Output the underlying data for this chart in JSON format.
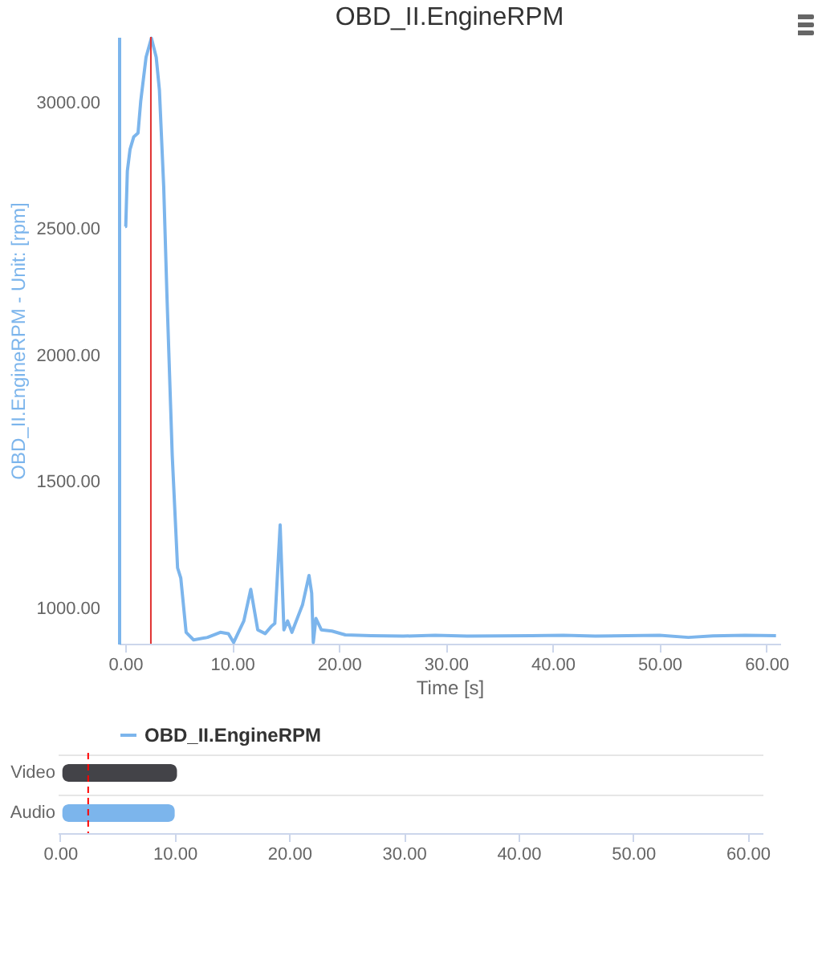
{
  "chart_data": [
    {
      "type": "line",
      "title": "OBD_II.EngineRPM",
      "xlabel": "Time [s]",
      "ylabel": "OBD_II.EngineRPM - Unit: [rpm]",
      "xlim": [
        -0.6,
        61.3
      ],
      "ylim": [
        860,
        3260
      ],
      "xticks": [
        {
          "value": 0,
          "label": "0.00"
        },
        {
          "value": 10,
          "label": "10.00"
        },
        {
          "value": 20,
          "label": "20.00"
        },
        {
          "value": 30,
          "label": "30.00"
        },
        {
          "value": 40,
          "label": "40.00"
        },
        {
          "value": 50,
          "label": "50.00"
        },
        {
          "value": 60,
          "label": "60.00"
        }
      ],
      "yticks": [
        {
          "value": 1000,
          "label": "1000.00"
        },
        {
          "value": 1500,
          "label": "1500.00"
        },
        {
          "value": 2000,
          "label": "2000.00"
        },
        {
          "value": 2500,
          "label": "2500.00"
        },
        {
          "value": 3000,
          "label": "3000.00"
        }
      ],
      "grid": false,
      "legend": "bottom",
      "marker": "none",
      "line_style": "solid",
      "ref_lines": [
        {
          "axis": "x",
          "value": 2.4,
          "color": "#e0302f"
        }
      ],
      "series": [
        {
          "name": "OBD_II.EngineRPM",
          "color": "#7cb5ec",
          "x": [
            0,
            0.05,
            0.2,
            0.45,
            0.8,
            1.2,
            1.45,
            1.95,
            2.45,
            2.9,
            3.2,
            3.6,
            3.9,
            4.4,
            4.9,
            5.2,
            5.7,
            6.4,
            7.7,
            8.9,
            9.65,
            10.15,
            11.1,
            11.75,
            12.4,
            13.1,
            13.7,
            14.0,
            14.5,
            14.85,
            15.2,
            15.6,
            16.6,
            17.2,
            17.45,
            17.6,
            17.85,
            18.35,
            19.35,
            20.6,
            23,
            26,
            29,
            32,
            35,
            38,
            41,
            44,
            47,
            50,
            52.7,
            55,
            58,
            60.9
          ],
          "values": [
            2510,
            2510,
            2730,
            2815,
            2865,
            2880,
            3005,
            3180,
            3255,
            3180,
            3050,
            2670,
            2245,
            1605,
            1160,
            1120,
            905,
            875,
            885,
            905,
            900,
            865,
            950,
            1075,
            915,
            900,
            930,
            940,
            1330,
            915,
            950,
            905,
            1015,
            1130,
            1060,
            865,
            960,
            915,
            910,
            895,
            892,
            890,
            893,
            890,
            891,
            892,
            893,
            890,
            892,
            893,
            885,
            891,
            893,
            892
          ]
        }
      ]
    },
    {
      "type": "bar",
      "orientation": "horizontal",
      "categories": [
        "Video",
        "Audio"
      ],
      "xlim": [
        -0.2,
        61.3
      ],
      "xticks": [
        {
          "value": 0,
          "label": "0.00"
        },
        {
          "value": 10,
          "label": "10.00"
        },
        {
          "value": 20,
          "label": "20.00"
        },
        {
          "value": 30,
          "label": "30.00"
        },
        {
          "value": 40,
          "label": "40.00"
        },
        {
          "value": 50,
          "label": "50.00"
        },
        {
          "value": 60,
          "label": "60.00"
        }
      ],
      "base": [
        0.2,
        0.2
      ],
      "values": [
        10.0,
        9.8
      ],
      "colors": [
        "#434348",
        "#7cb5ec"
      ],
      "grid": "y",
      "legend": false,
      "ref_lines": [
        {
          "axis": "x",
          "value": 2.45,
          "color": "#ff0000",
          "line_style": "dashed"
        }
      ]
    }
  ]
}
